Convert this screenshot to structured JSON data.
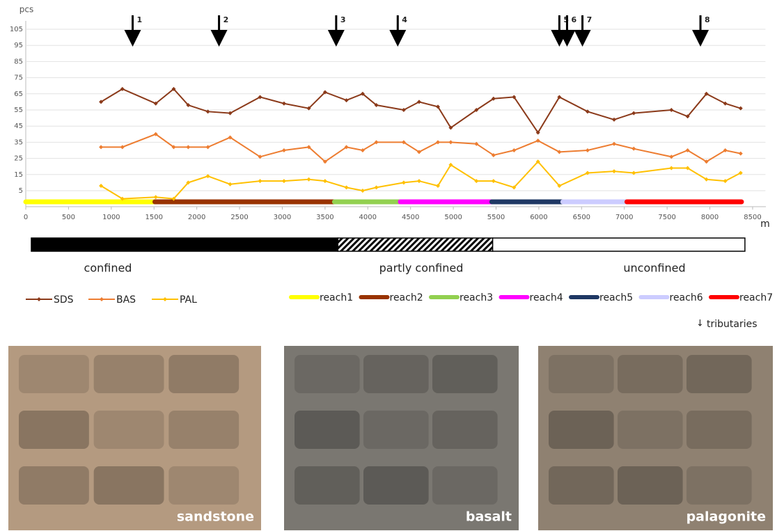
{
  "chart_data": {
    "type": "line",
    "ylabel": "pcs",
    "xlabel": "m",
    "xlim": [
      0,
      8650
    ],
    "xticks": [
      0,
      500,
      1000,
      1500,
      2000,
      2500,
      3000,
      3500,
      4000,
      4500,
      5000,
      5500,
      6000,
      6500,
      7000,
      7500,
      8000,
      8500
    ],
    "ylim": [
      -5,
      110
    ],
    "yticks": [
      5,
      15,
      25,
      35,
      45,
      55,
      65,
      75,
      85,
      95,
      105
    ],
    "grid": true,
    "x": [
      880,
      1130,
      1520,
      1730,
      1900,
      2130,
      2390,
      2740,
      3020,
      3310,
      3500,
      3750,
      3940,
      4100,
      4420,
      4600,
      4820,
      4970,
      5270,
      5470,
      5710,
      5990,
      6240,
      6570,
      6880,
      7110,
      7550,
      7740,
      7960,
      8180,
      8360
    ],
    "series": [
      {
        "name": "SDS",
        "color": "#8b3a1a",
        "values": [
          60,
          68,
          59,
          68,
          58,
          54,
          53,
          63,
          59,
          56,
          66,
          61,
          65,
          58,
          55,
          60,
          57,
          44,
          55,
          62,
          63,
          41,
          63,
          54,
          49,
          53,
          55,
          51,
          65,
          59,
          56
        ]
      },
      {
        "name": "BAS",
        "color": "#ed7d31",
        "values": [
          32,
          32,
          40,
          32,
          32,
          32,
          38,
          26,
          30,
          32,
          23,
          32,
          30,
          35,
          35,
          29,
          35,
          35,
          34,
          27,
          30,
          36,
          29,
          30,
          34,
          31,
          26,
          30,
          23,
          30,
          28
        ]
      },
      {
        "name": "PAL",
        "color": "#ffc000",
        "values": [
          8,
          0,
          1,
          0,
          10,
          14,
          9,
          11,
          11,
          12,
          11,
          7,
          5,
          7,
          10,
          11,
          8,
          21,
          11,
          11,
          7,
          23,
          8,
          16,
          17,
          16,
          19,
          19,
          12,
          11,
          16
        ]
      }
    ],
    "reaches": [
      {
        "name": "reach1",
        "color": "#ffff00",
        "start": 0,
        "end": 1510
      },
      {
        "name": "reach2",
        "color": "#993300",
        "start": 1510,
        "end": 3610
      },
      {
        "name": "reach3",
        "color": "#92d050",
        "start": 3610,
        "end": 4380
      },
      {
        "name": "reach4",
        "color": "#ff00ff",
        "start": 4380,
        "end": 5450
      },
      {
        "name": "reach5",
        "color": "#1f3864",
        "start": 5450,
        "end": 6280
      },
      {
        "name": "reach6",
        "color": "#ccccff",
        "start": 6280,
        "end": 7030
      },
      {
        "name": "reach7",
        "color": "#ff0000",
        "start": 7030,
        "end": 8370
      }
    ],
    "tributaries": {
      "label": "tributaries",
      "positions": [
        1250,
        2260,
        3630,
        4350,
        6240,
        6330,
        6510,
        7890
      ],
      "labels": [
        "1",
        "2",
        "3",
        "4",
        "5",
        "6",
        "7",
        "8"
      ]
    },
    "confinement": [
      {
        "label": "confined",
        "fill": "#000000",
        "start": 65,
        "end": 3650
      },
      {
        "label": "partly confined",
        "fill": "hatch",
        "start": 3650,
        "end": 5460
      },
      {
        "label": "unconfined",
        "fill": "#ffffff",
        "start": 5460,
        "end": 8410
      }
    ]
  },
  "photos": [
    {
      "caption": "sandstone",
      "color": "#b49a80"
    },
    {
      "caption": "basalt",
      "color": "#7a7771"
    },
    {
      "caption": "palagonite",
      "color": "#8f8171"
    }
  ]
}
